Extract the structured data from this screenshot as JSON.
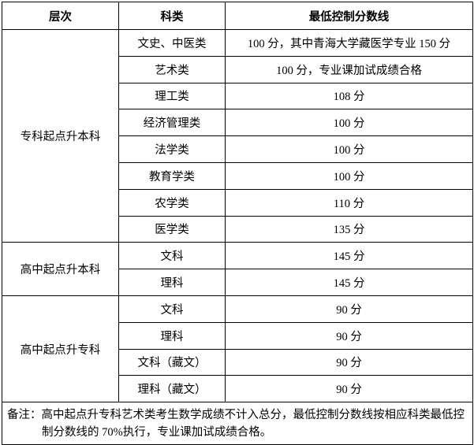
{
  "table": {
    "header": [
      "层次",
      "科类",
      "最低控制分数线"
    ],
    "groups": [
      {
        "level": "专科起点升本科",
        "rows": [
          [
            "文史、中医类",
            "100 分，其中青海大学藏医学专业 150 分"
          ],
          [
            "艺术类",
            "100 分，专业课加试成绩合格"
          ],
          [
            "理工类",
            "108 分"
          ],
          [
            "经济管理类",
            "100 分"
          ],
          [
            "法学类",
            "100 分"
          ],
          [
            "教育学类",
            "100 分"
          ],
          [
            "农学类",
            "110 分"
          ],
          [
            "医学类",
            "135 分"
          ]
        ]
      },
      {
        "level": "高中起点升本科",
        "rows": [
          [
            "文科",
            "145 分"
          ],
          [
            "理科",
            "145 分"
          ]
        ]
      },
      {
        "level": "高中起点升专科",
        "rows": [
          [
            "文科",
            "90 分"
          ],
          [
            "理科",
            "90 分"
          ],
          [
            "文科（藏文）",
            "90 分"
          ],
          [
            "理科（藏文）",
            "90 分"
          ]
        ]
      }
    ],
    "note": "备注：高中起点升专科艺术类考生数学成绩不计入总分，最低控制分数线按相应科类最低控制分数线的 70%执行，专业课加试成绩合格。"
  }
}
